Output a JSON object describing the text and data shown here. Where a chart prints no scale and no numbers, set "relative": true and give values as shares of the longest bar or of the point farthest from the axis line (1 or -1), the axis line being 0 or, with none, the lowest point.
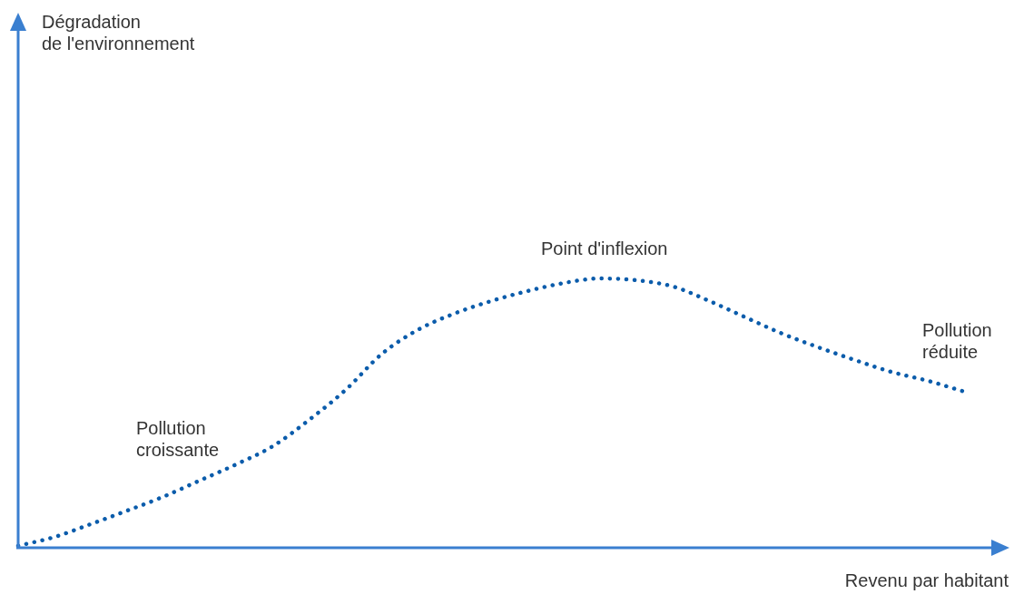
{
  "chart_data": {
    "type": "line",
    "relative": true,
    "xlabel": "Revenu par habitant",
    "categories": [
      null,
      null,
      null,
      null,
      null,
      null,
      null,
      null,
      null,
      null,
      null,
      null,
      null,
      null,
      null,
      null,
      null,
      null,
      null,
      null,
      null,
      null,
      null,
      null,
      null,
      null,
      null
    ],
    "series": [
      {
        "color": "#0b5cab",
        "values": [
          0.007,
          0.04,
          0.088,
          0.138,
          0.19,
          0.25,
          0.31,
          0.377,
          0.475,
          0.586,
          0.72,
          0.81,
          0.87,
          0.916,
          0.953,
          0.983,
          1.0,
          0.993,
          0.97,
          0.916,
          0.855,
          0.795,
          0.744,
          0.697,
          0.653,
          0.62,
          0.58
        ]
      }
    ],
    "line_style": "dotted",
    "marker": "none",
    "legend": false,
    "annotations": [
      "Point d'inflexion",
      "Pollution\ncroissante",
      "Pollution\nréduite",
      "Dégradation\nde l'environnement"
    ]
  }
}
